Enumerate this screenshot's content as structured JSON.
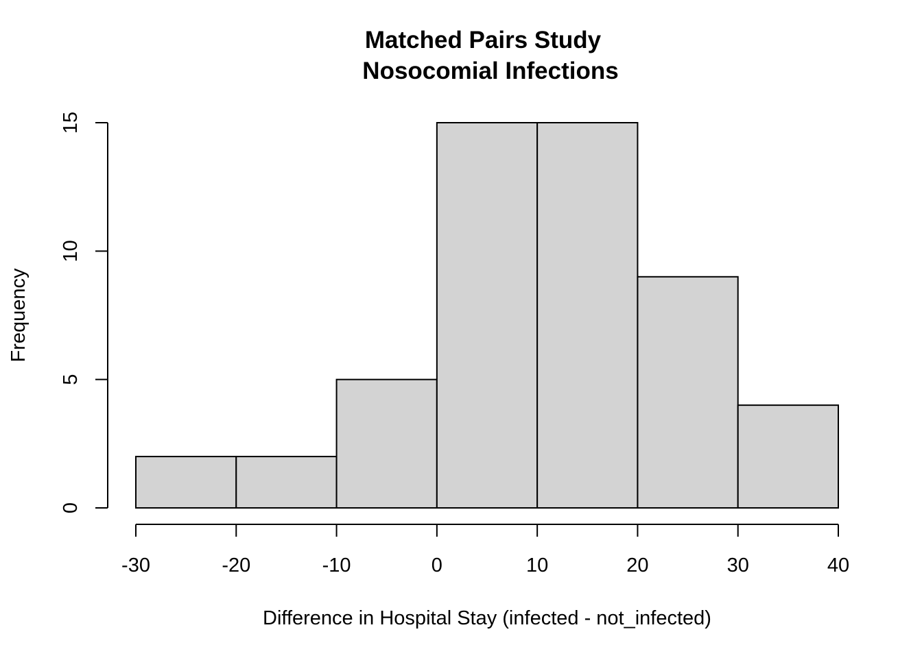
{
  "chart_data": {
    "type": "bar",
    "title_line1": "Matched Pairs Study",
    "title_line2": "Nosocomial Infections",
    "xlabel": "Difference in Hospital Stay (infected - not_infected)",
    "ylabel": "Frequency",
    "bins": [
      {
        "from": -30,
        "to": -20,
        "value": 2
      },
      {
        "from": -20,
        "to": -10,
        "value": 2
      },
      {
        "from": -10,
        "to": 0,
        "value": 5
      },
      {
        "from": 0,
        "to": 10,
        "value": 15
      },
      {
        "from": 10,
        "to": 20,
        "value": 15
      },
      {
        "from": 20,
        "to": 30,
        "value": 9
      },
      {
        "from": 30,
        "to": 40,
        "value": 4
      }
    ],
    "xlim": [
      -30,
      40
    ],
    "ylim": [
      0,
      15
    ],
    "x_ticks": [
      "-30",
      "-20",
      "-10",
      "0",
      "10",
      "20",
      "30",
      "40"
    ],
    "y_ticks": [
      "0",
      "5",
      "10",
      "15"
    ],
    "grid": false,
    "legend": "none"
  }
}
